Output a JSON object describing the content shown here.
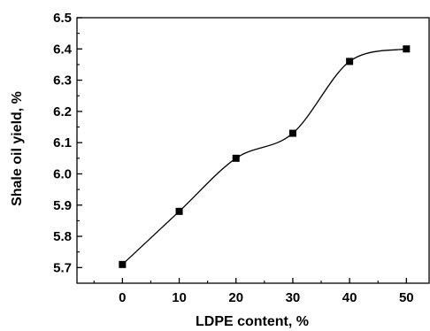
{
  "chart_data": {
    "type": "scatter",
    "title": "",
    "xlabel": "LDPE content, %",
    "ylabel": "Shale oil yield, %",
    "xlim": [
      -8,
      54
    ],
    "ylim": [
      5.65,
      6.5
    ],
    "x_ticks": [
      0,
      10,
      20,
      30,
      40,
      50
    ],
    "y_ticks": [
      5.7,
      5.8,
      5.9,
      6.0,
      6.1,
      6.2,
      6.3,
      6.4,
      6.5
    ],
    "grid": false,
    "legend": "none",
    "marker": "square",
    "series": [
      {
        "x": [
          0,
          10,
          20,
          30,
          40,
          50
        ],
        "y": [
          5.71,
          5.88,
          6.05,
          6.13,
          6.36,
          6.4
        ]
      }
    ],
    "fit_curve": true,
    "colors": {
      "marker": "#000000",
      "line": "#000000",
      "axis": "#000000"
    }
  }
}
